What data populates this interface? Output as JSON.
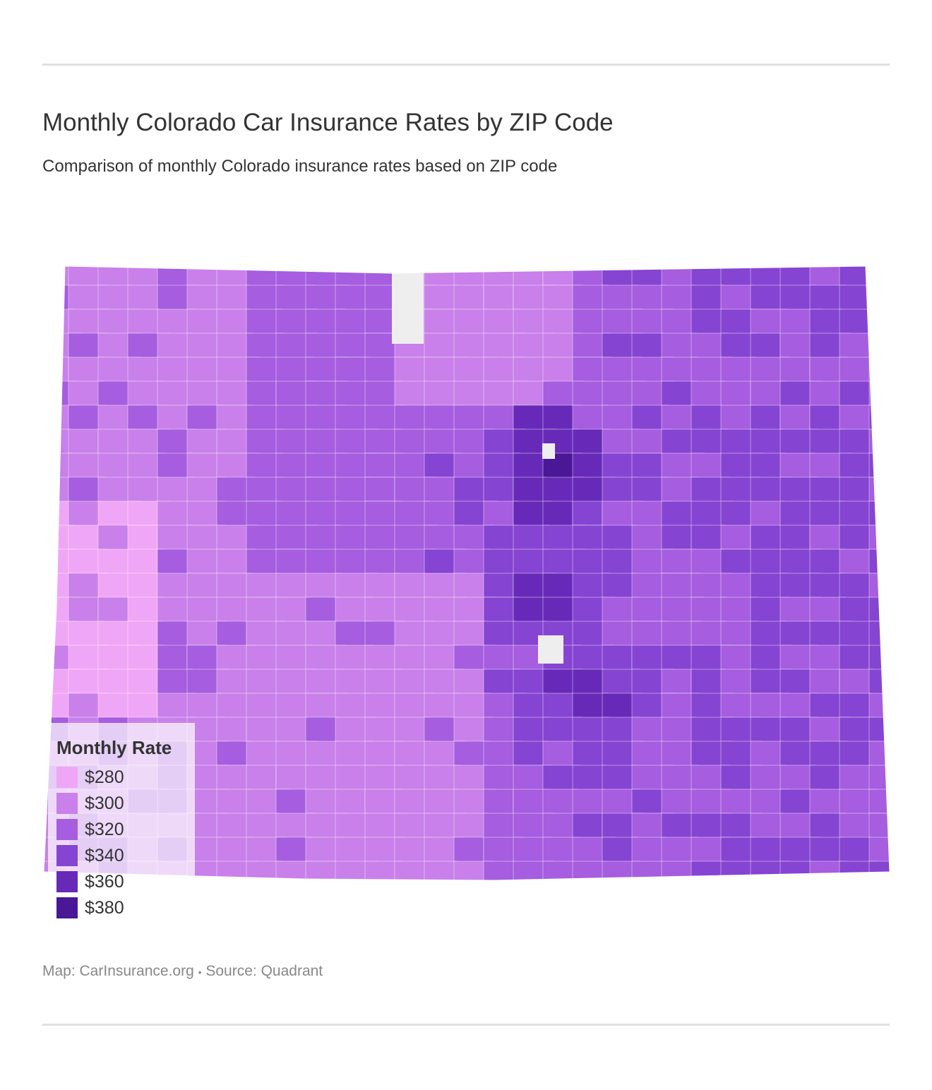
{
  "title": "Monthly Colorado Car Insurance Rates by ZIP Code",
  "subtitle": "Comparison of monthly Colorado insurance rates based on ZIP code",
  "legend": {
    "title": "Monthly Rate",
    "items": [
      {
        "label": "$280",
        "value": 280,
        "color": "#f0a6f7"
      },
      {
        "label": "$300",
        "value": 300,
        "color": "#c980ea"
      },
      {
        "label": "$320",
        "value": 320,
        "color": "#a65ddf"
      },
      {
        "label": "$340",
        "value": 340,
        "color": "#8644d2"
      },
      {
        "label": "$360",
        "value": 360,
        "color": "#672ab8"
      },
      {
        "label": "$380",
        "value": 380,
        "color": "#4a1796"
      }
    ],
    "no_data_color": "#eeeeee"
  },
  "footer": {
    "map_credit": "Map: CarInsurance.org",
    "separator": "•",
    "source": "Source: Quadrant"
  }
}
